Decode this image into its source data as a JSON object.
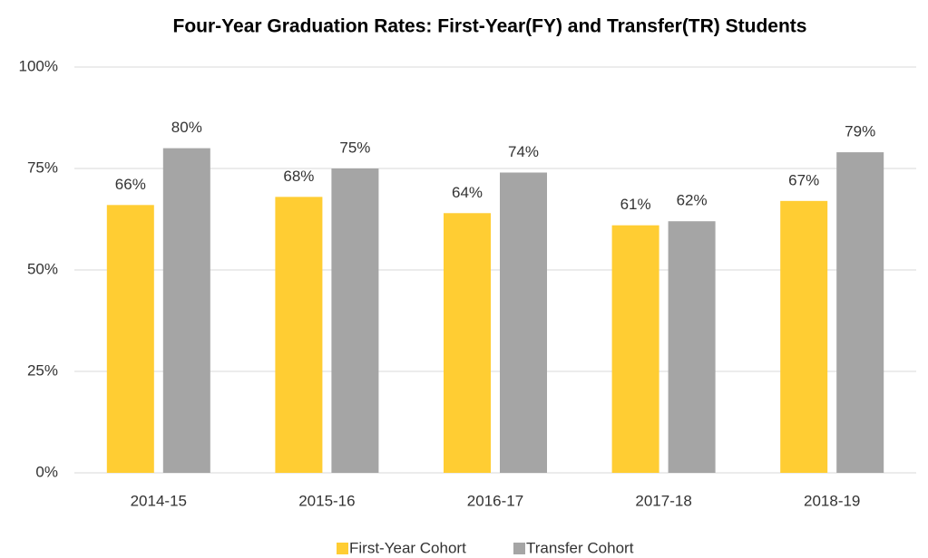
{
  "chart_data": {
    "type": "bar",
    "title": "Four-Year Graduation Rates: First-Year(FY) and Transfer(TR) Students",
    "categories": [
      "2014-15",
      "2015-16",
      "2016-17",
      "2017-18",
      "2018-19"
    ],
    "series": [
      {
        "name": "First-Year Cohort",
        "color": "#FFCD33",
        "values": [
          66,
          68,
          64,
          61,
          67
        ],
        "value_labels": [
          "66%",
          "68%",
          "64%",
          "61%",
          "67%"
        ]
      },
      {
        "name": "Transfer Cohort",
        "color": "#A5A5A5",
        "values": [
          80,
          75,
          74,
          62,
          79
        ],
        "value_labels": [
          "80%",
          "75%",
          "74%",
          "62%",
          "79%"
        ]
      }
    ],
    "ylim": [
      0,
      100
    ],
    "yticks": [
      {
        "value": 0,
        "label": "0%"
      },
      {
        "value": 25,
        "label": "25%"
      },
      {
        "value": 50,
        "label": "50%"
      },
      {
        "value": 75,
        "label": "75%"
      },
      {
        "value": 100,
        "label": "100%"
      }
    ],
    "grid": true,
    "legend": "bottom"
  }
}
